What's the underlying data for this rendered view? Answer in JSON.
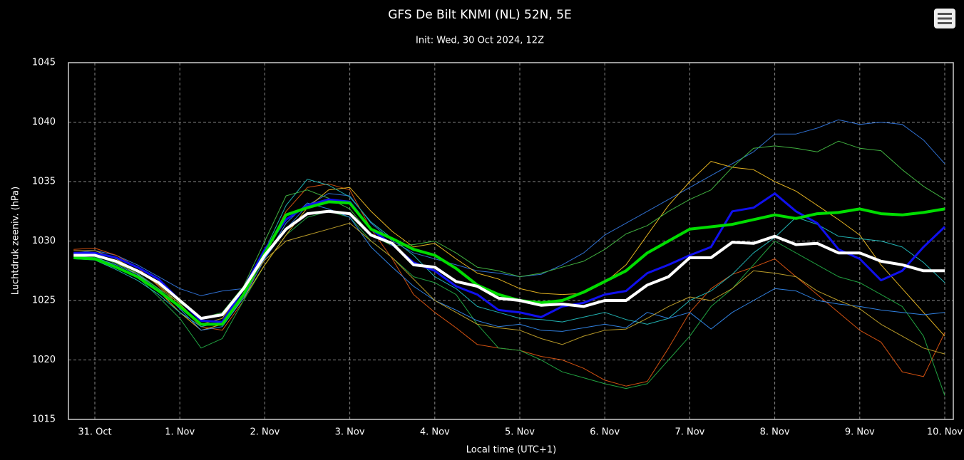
{
  "chart_data": {
    "type": "line",
    "title": "GFS De Bilt KNMI (NL) 52N, 5E",
    "subtitle": "Init: Wed, 30 Oct 2024, 12Z",
    "y_label": "Luchtdruk zeeniv. (hPa)",
    "x_label": "Local time (UTC+1)",
    "categories": [
      null,
      "31. Oct",
      null,
      null,
      null,
      "1. Nov",
      null,
      null,
      null,
      "2. Nov",
      null,
      null,
      null,
      "3. Nov",
      null,
      null,
      null,
      "4. Nov",
      null,
      null,
      null,
      "5. Nov",
      null,
      null,
      null,
      "6. Nov",
      null,
      null,
      null,
      "7. Nov",
      null,
      null,
      null,
      "8. Nov",
      null,
      null,
      null,
      "9. Nov",
      null,
      null,
      null,
      "10. Nov"
    ],
    "ylim": [
      1015,
      1045
    ],
    "yticks": [
      1015,
      1020,
      1025,
      1030,
      1035,
      1040,
      1045
    ],
    "grid": true,
    "series": [
      {
        "color": "#2f6fd0",
        "width": 1,
        "values": [
          1029,
          1029.2,
          1028.8,
          1028,
          1027,
          1026,
          1025.4,
          1025.8,
          1026,
          1028.5,
          1031,
          1033,
          1034,
          1033.8,
          1031.5,
          1030,
          1029,
          1028.5,
          1028,
          1027.5,
          1027.3,
          1027,
          1027.2,
          1028,
          1029,
          1030.5,
          1031.5,
          1032.5,
          1033.5,
          1034.5,
          1035.5,
          1036.5,
          1037.5,
          1039,
          1039,
          1039.5,
          1040.2,
          1039.8,
          1040,
          1039.8,
          1038.5,
          1036.5
        ]
      },
      {
        "color": "#d05010",
        "width": 1,
        "values": [
          1029.3,
          1029.4,
          1028.8,
          1027.8,
          1026.2,
          1024.5,
          1022.8,
          1022.5,
          1025,
          1029,
          1032.5,
          1034.5,
          1034.8,
          1034.3,
          1031,
          1028.5,
          1025.5,
          1024,
          1022.7,
          1021.3,
          1021,
          1020.8,
          1020.3,
          1020,
          1019.3,
          1018.3,
          1017.8,
          1018.2,
          1021,
          1024,
          1026,
          1027.2,
          1027.8,
          1028.5,
          1027,
          1025.5,
          1024,
          1022.5,
          1021.5,
          1019,
          1018.6,
          1022.3
        ]
      },
      {
        "color": "#20a040",
        "width": 1,
        "values": [
          1028.8,
          1028.7,
          1027.9,
          1027,
          1025.3,
          1023.5,
          1021,
          1021.8,
          1025,
          1028,
          1030.5,
          1032,
          1032.5,
          1032,
          1030,
          1028.6,
          1027,
          1026.5,
          1025.5,
          1023,
          1021,
          1020.8,
          1020,
          1019,
          1018.5,
          1018,
          1017.6,
          1018,
          1020,
          1022,
          1024.5,
          1026,
          1028,
          1030,
          1029,
          1028,
          1027,
          1026.5,
          1025.5,
          1024.5,
          1022,
          1017
        ]
      },
      {
        "color": "#e0b020",
        "width": 1,
        "values": [
          1029,
          1028.9,
          1028.2,
          1027.2,
          1025.8,
          1024,
          1022.5,
          1023,
          1025.2,
          1028,
          1030.5,
          1032.8,
          1034.3,
          1034.5,
          1032.5,
          1030.8,
          1029.5,
          1029.8,
          1028.5,
          1027.3,
          1026.8,
          1026,
          1025.6,
          1025.5,
          1025.6,
          1026.5,
          1028,
          1030.5,
          1033,
          1035,
          1036.7,
          1036.2,
          1036,
          1035,
          1034.2,
          1033,
          1031.8,
          1030.5,
          1028,
          1026,
          1024,
          1022
        ]
      },
      {
        "color": "#20b0b0",
        "width": 1,
        "values": [
          1028.5,
          1028.4,
          1027.6,
          1026.7,
          1025.5,
          1024,
          1022.8,
          1023.2,
          1025.6,
          1029.2,
          1033,
          1035.2,
          1034.7,
          1033.7,
          1031.6,
          1030.2,
          1028.8,
          1027,
          1026,
          1024.5,
          1024,
          1023.5,
          1023.4,
          1023.2,
          1023.6,
          1024,
          1023.4,
          1023,
          1023.5,
          1025,
          1025.8,
          1027.2,
          1029,
          1030.3,
          1032,
          1031.4,
          1030.4,
          1030.2,
          1030,
          1029.5,
          1028.2,
          1026.5
        ]
      },
      {
        "color": "#3080e0",
        "width": 1,
        "values": [
          1028.7,
          1028.6,
          1028,
          1027.2,
          1026,
          1024.3,
          1022.5,
          1022.8,
          1025.2,
          1028.5,
          1031.5,
          1033.2,
          1032.7,
          1032,
          1029.5,
          1027.8,
          1026.2,
          1025,
          1024.2,
          1023.3,
          1022.8,
          1023,
          1022.5,
          1022.4,
          1022.7,
          1023,
          1022.7,
          1024,
          1023.5,
          1024,
          1022.6,
          1024,
          1025,
          1026,
          1025.8,
          1025,
          1024.7,
          1024.5,
          1024.2,
          1024,
          1023.8,
          1024
        ]
      },
      {
        "color": "#40b040",
        "width": 1,
        "values": [
          1028.9,
          1028.8,
          1028.1,
          1027.3,
          1026,
          1024.8,
          1023.5,
          1024,
          1026.2,
          1030,
          1033.8,
          1034.3,
          1033.6,
          1032.7,
          1030.5,
          1029.6,
          1029.7,
          1030,
          1029,
          1027.8,
          1027.5,
          1027,
          1027.3,
          1027.8,
          1028.3,
          1029.3,
          1030.6,
          1031.3,
          1032.5,
          1033.5,
          1034.3,
          1036.2,
          1037.8,
          1038,
          1037.8,
          1037.5,
          1038.4,
          1037.8,
          1037.6,
          1036,
          1034.6,
          1033.5
        ]
      },
      {
        "color": "#b89a28",
        "width": 1,
        "values": [
          1029.2,
          1029.2,
          1028.5,
          1027.5,
          1026.3,
          1024.7,
          1023,
          1023.5,
          1026,
          1028.4,
          1030,
          1030.5,
          1031,
          1031.5,
          1030,
          1028.6,
          1026.8,
          1025,
          1024,
          1023,
          1022.7,
          1022.5,
          1021.8,
          1021.3,
          1022,
          1022.5,
          1022.6,
          1023.5,
          1024.5,
          1025.3,
          1025,
          1026,
          1027.5,
          1027.3,
          1027,
          1025.8,
          1025,
          1024.3,
          1023,
          1022,
          1021,
          1020.5
        ]
      },
      {
        "color": "#1010ee",
        "width": 3,
        "values": [
          1029,
          1029,
          1028.6,
          1027.8,
          1026.8,
          1025,
          1023.3,
          1023.2,
          1026,
          1029.3,
          1031.8,
          1033,
          1033.5,
          1033.3,
          1031,
          1029.7,
          1028.2,
          1027.5,
          1026.2,
          1025.5,
          1024.2,
          1024,
          1023.6,
          1024.5,
          1024.8,
          1025.5,
          1025.8,
          1027.3,
          1028,
          1028.8,
          1029.5,
          1032.5,
          1032.8,
          1034,
          1032.5,
          1031.5,
          1029.3,
          1028.5,
          1026.7,
          1027.5,
          1029.5,
          1031.2
        ]
      },
      {
        "color": "#00dd00",
        "width": 4,
        "values": [
          1028.6,
          1028.5,
          1027.8,
          1027,
          1025.8,
          1024.5,
          1023,
          1023,
          1025.5,
          1029,
          1032.2,
          1032.8,
          1033.3,
          1033.2,
          1031,
          1030.2,
          1029.3,
          1028.8,
          1027.7,
          1026.3,
          1025.5,
          1025,
          1024.8,
          1025,
          1025.7,
          1026.6,
          1027.5,
          1029,
          1030,
          1031,
          1031.2,
          1031.4,
          1031.8,
          1032.2,
          1031.9,
          1032.3,
          1032.4,
          1032.7,
          1032.3,
          1032.2,
          1032.4,
          1032.7
        ]
      },
      {
        "color": "#ffffff",
        "width": 4,
        "values": [
          1028.8,
          1028.8,
          1028.3,
          1027.5,
          1026.5,
          1025,
          1023.5,
          1023.8,
          1026,
          1028.8,
          1031,
          1032.3,
          1032.5,
          1032.3,
          1030.5,
          1029.8,
          1028,
          1027.8,
          1026.6,
          1026.2,
          1025.2,
          1025,
          1024.6,
          1024.7,
          1024.5,
          1025,
          1025,
          1026.3,
          1027,
          1028.6,
          1028.6,
          1029.9,
          1029.8,
          1030.4,
          1029.7,
          1029.8,
          1029,
          1029,
          1028.3,
          1028,
          1027.5,
          1027.5
        ]
      }
    ]
  }
}
